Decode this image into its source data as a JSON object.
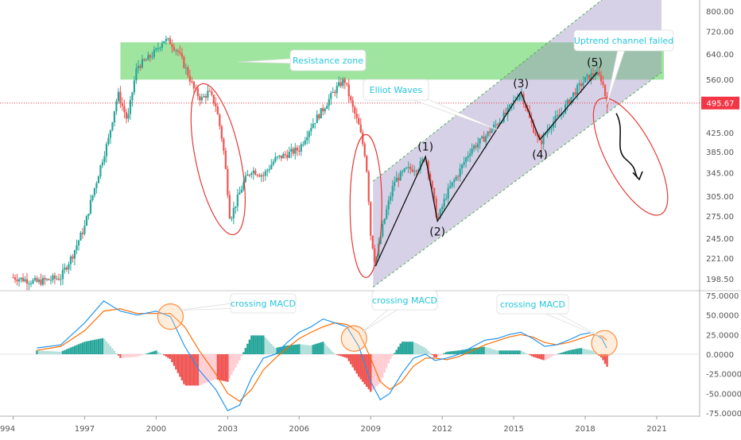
{
  "chart_data": [
    {
      "type": "candlestick",
      "panel": "price",
      "price_axis_ticks": [
        "800.00",
        "720.00",
        "640.00",
        "560.00",
        "495.67",
        "425.00",
        "385.00",
        "345.00",
        "305.00",
        "275.00",
        "245.00",
        "221.00",
        "198.50"
      ],
      "last_price": "495.67",
      "last_price_color": "#f23645",
      "resistance_zone": {
        "low": 560,
        "high": 680,
        "from": 1998.5,
        "to": 2021.3,
        "color": "#7fdc7f"
      },
      "annotations": {
        "resistance": "Resistance zone",
        "elliot": "Elliot Waves",
        "failed": "Uptrend channel failed"
      },
      "wave_labels": [
        {
          "label": "(1)",
          "x": 2011.3,
          "y": 378
        },
        {
          "label": "(2)",
          "x": 2011.8,
          "y": 268
        },
        {
          "label": "(3)",
          "x": 2015.3,
          "y": 525
        },
        {
          "label": "(4)",
          "x": 2016.1,
          "y": 400
        },
        {
          "label": "(5)",
          "x": 2018.4,
          "y": 585
        }
      ],
      "price_path": [
        [
          1994.0,
          200
        ],
        [
          1995.0,
          195
        ],
        [
          1996.0,
          200
        ],
        [
          1996.5,
          225
        ],
        [
          1997.0,
          260
        ],
        [
          1997.5,
          330
        ],
        [
          1998.0,
          410
        ],
        [
          1998.4,
          520
        ],
        [
          1998.8,
          450
        ],
        [
          1999.2,
          600
        ],
        [
          1999.6,
          620
        ],
        [
          2000.0,
          650
        ],
        [
          2000.3,
          690
        ],
        [
          2000.6,
          680
        ],
        [
          2000.9,
          650
        ],
        [
          2001.2,
          600
        ],
        [
          2001.6,
          530
        ],
        [
          2001.9,
          505
        ],
        [
          2002.2,
          525
        ],
        [
          2002.5,
          490
        ],
        [
          2002.8,
          400
        ],
        [
          2003.1,
          270
        ],
        [
          2003.4,
          300
        ],
        [
          2003.7,
          330
        ],
        [
          2004.0,
          350
        ],
        [
          2004.5,
          340
        ],
        [
          2005.0,
          370
        ],
        [
          2005.5,
          380
        ],
        [
          2006.0,
          390
        ],
        [
          2006.5,
          440
        ],
        [
          2007.0,
          480
        ],
        [
          2007.5,
          530
        ],
        [
          2007.9,
          560
        ],
        [
          2008.2,
          490
        ],
        [
          2008.5,
          440
        ],
        [
          2008.8,
          370
        ],
        [
          2009.0,
          250
        ],
        [
          2009.2,
          215
        ],
        [
          2009.5,
          260
        ],
        [
          2010.0,
          330
        ],
        [
          2010.5,
          350
        ],
        [
          2011.0,
          355
        ],
        [
          2011.3,
          375
        ],
        [
          2011.6,
          310
        ],
        [
          2011.8,
          268
        ],
        [
          2012.2,
          310
        ],
        [
          2012.7,
          345
        ],
        [
          2013.2,
          390
        ],
        [
          2013.7,
          410
        ],
        [
          2014.2,
          440
        ],
        [
          2014.7,
          470
        ],
        [
          2015.0,
          500
        ],
        [
          2015.3,
          525
        ],
        [
          2015.7,
          450
        ],
        [
          2016.1,
          400
        ],
        [
          2016.5,
          440
        ],
        [
          2017.0,
          470
        ],
        [
          2017.5,
          520
        ],
        [
          2018.0,
          560
        ],
        [
          2018.4,
          580
        ],
        [
          2018.7,
          560
        ],
        [
          2018.9,
          495.67
        ]
      ]
    },
    {
      "type": "macd",
      "panel": "indicator",
      "macd_axis_ticks": [
        "75.0000",
        "50.0000",
        "25.0000",
        "0.0000",
        "-25.0000",
        "-50.0000",
        "-75.0000"
      ],
      "macd_label": "crossing MACD",
      "crossings": [
        2000.6,
        2008.3,
        2018.8
      ],
      "macd_line": [
        [
          1995.0,
          8
        ],
        [
          1996.0,
          12
        ],
        [
          1997.0,
          40
        ],
        [
          1997.8,
          68
        ],
        [
          1998.5,
          55
        ],
        [
          1999.2,
          50
        ],
        [
          2000.0,
          55
        ],
        [
          2000.6,
          48
        ],
        [
          2001.2,
          10
        ],
        [
          2001.8,
          -20
        ],
        [
          2002.5,
          -45
        ],
        [
          2003.0,
          -72
        ],
        [
          2003.5,
          -65
        ],
        [
          2004.0,
          -30
        ],
        [
          2004.5,
          -5
        ],
        [
          2005.0,
          0
        ],
        [
          2005.5,
          15
        ],
        [
          2006.0,
          28
        ],
        [
          2006.5,
          35
        ],
        [
          2007.0,
          45
        ],
        [
          2007.5,
          40
        ],
        [
          2008.0,
          35
        ],
        [
          2008.5,
          10
        ],
        [
          2009.0,
          -35
        ],
        [
          2009.4,
          -58
        ],
        [
          2009.8,
          -50
        ],
        [
          2010.3,
          -25
        ],
        [
          2010.8,
          -5
        ],
        [
          2011.3,
          0
        ],
        [
          2011.7,
          -8
        ],
        [
          2012.2,
          -5
        ],
        [
          2012.7,
          0
        ],
        [
          2013.3,
          10
        ],
        [
          2013.8,
          18
        ],
        [
          2014.3,
          20
        ],
        [
          2014.8,
          25
        ],
        [
          2015.3,
          28
        ],
        [
          2015.8,
          20
        ],
        [
          2016.3,
          10
        ],
        [
          2016.8,
          12
        ],
        [
          2017.3,
          18
        ],
        [
          2017.8,
          25
        ],
        [
          2018.3,
          28
        ],
        [
          2018.7,
          20
        ],
        [
          2018.9,
          8
        ]
      ],
      "signal_line": [
        [
          1995.0,
          5
        ],
        [
          1996.0,
          10
        ],
        [
          1997.0,
          30
        ],
        [
          1997.8,
          55
        ],
        [
          1998.5,
          58
        ],
        [
          1999.2,
          52
        ],
        [
          2000.0,
          52
        ],
        [
          2000.6,
          52
        ],
        [
          2001.2,
          35
        ],
        [
          2001.8,
          5
        ],
        [
          2002.5,
          -25
        ],
        [
          2003.0,
          -50
        ],
        [
          2003.5,
          -60
        ],
        [
          2004.0,
          -45
        ],
        [
          2004.5,
          -20
        ],
        [
          2005.0,
          -5
        ],
        [
          2005.5,
          8
        ],
        [
          2006.0,
          20
        ],
        [
          2006.5,
          28
        ],
        [
          2007.0,
          35
        ],
        [
          2007.5,
          40
        ],
        [
          2008.0,
          38
        ],
        [
          2008.5,
          28
        ],
        [
          2009.0,
          -5
        ],
        [
          2009.4,
          -35
        ],
        [
          2009.8,
          -45
        ],
        [
          2010.3,
          -35
        ],
        [
          2010.8,
          -15
        ],
        [
          2011.3,
          -5
        ],
        [
          2011.7,
          -5
        ],
        [
          2012.2,
          -7
        ],
        [
          2012.7,
          -3
        ],
        [
          2013.3,
          5
        ],
        [
          2013.8,
          12
        ],
        [
          2014.3,
          17
        ],
        [
          2014.8,
          22
        ],
        [
          2015.3,
          25
        ],
        [
          2015.8,
          22
        ],
        [
          2016.3,
          15
        ],
        [
          2016.8,
          12
        ],
        [
          2017.3,
          15
        ],
        [
          2017.8,
          20
        ],
        [
          2018.3,
          25
        ],
        [
          2018.7,
          23
        ],
        [
          2018.9,
          18
        ]
      ]
    }
  ],
  "x_axis": {
    "ticks": [
      "994",
      "1997",
      "2000",
      "2003",
      "2006",
      "2009",
      "2012",
      "2015",
      "2018",
      "2021"
    ]
  },
  "colors": {
    "bullish": "#26a69a",
    "bearish": "#ef5350",
    "macd_line": "#2196f3",
    "signal_line": "#ff6d00",
    "channel_fill": "#9c8bc4",
    "channel_line": "#4caf50",
    "ellipse": "#e53935",
    "bubble_text": "#26c6da"
  }
}
